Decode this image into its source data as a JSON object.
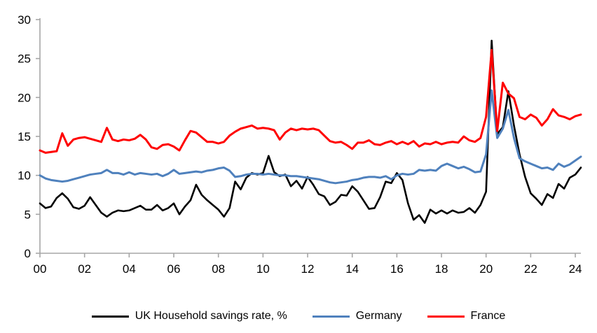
{
  "chart": {
    "axis_color": "#A6A6A6",
    "text_color": "#000000",
    "background": "#FFFFFF"
  },
  "chart_data": {
    "type": "line",
    "title": "",
    "xlabel": "",
    "ylabel": "",
    "ylim": [
      0,
      30
    ],
    "y_ticks": [
      0,
      5,
      10,
      15,
      20,
      25,
      30
    ],
    "grid": false,
    "legend_position": "bottom",
    "x_tick_labels": [
      "00",
      "02",
      "04",
      "06",
      "08",
      "10",
      "12",
      "14",
      "16",
      "18",
      "20",
      "22",
      "24"
    ],
    "x_tick_every": 8,
    "x": [
      "2000Q1",
      "2000Q2",
      "2000Q3",
      "2000Q4",
      "2001Q1",
      "2001Q2",
      "2001Q3",
      "2001Q4",
      "2002Q1",
      "2002Q2",
      "2002Q3",
      "2002Q4",
      "2003Q1",
      "2003Q2",
      "2003Q3",
      "2003Q4",
      "2004Q1",
      "2004Q2",
      "2004Q3",
      "2004Q4",
      "2005Q1",
      "2005Q2",
      "2005Q3",
      "2005Q4",
      "2006Q1",
      "2006Q2",
      "2006Q3",
      "2006Q4",
      "2007Q1",
      "2007Q2",
      "2007Q3",
      "2007Q4",
      "2008Q1",
      "2008Q2",
      "2008Q3",
      "2008Q4",
      "2009Q1",
      "2009Q2",
      "2009Q3",
      "2009Q4",
      "2010Q1",
      "2010Q2",
      "2010Q3",
      "2010Q4",
      "2011Q1",
      "2011Q2",
      "2011Q3",
      "2011Q4",
      "2012Q1",
      "2012Q2",
      "2012Q3",
      "2012Q4",
      "2013Q1",
      "2013Q2",
      "2013Q3",
      "2013Q4",
      "2014Q1",
      "2014Q2",
      "2014Q3",
      "2014Q4",
      "2015Q1",
      "2015Q2",
      "2015Q3",
      "2015Q4",
      "2016Q1",
      "2016Q2",
      "2016Q3",
      "2016Q4",
      "2017Q1",
      "2017Q2",
      "2017Q3",
      "2017Q4",
      "2018Q1",
      "2018Q2",
      "2018Q3",
      "2018Q4",
      "2019Q1",
      "2019Q2",
      "2019Q3",
      "2019Q4",
      "2020Q1",
      "2020Q2",
      "2020Q3",
      "2020Q4",
      "2021Q1",
      "2021Q2",
      "2021Q3",
      "2021Q4",
      "2022Q1",
      "2022Q2",
      "2022Q3",
      "2022Q4",
      "2023Q1",
      "2023Q2",
      "2023Q3",
      "2023Q4",
      "2024Q1",
      "2024Q2"
    ],
    "series": [
      {
        "name": "UK Household savings rate, %",
        "color": "#000000",
        "stroke_width": 2.6,
        "values": [
          6.4,
          5.8,
          6.0,
          7.1,
          7.7,
          7.0,
          5.9,
          5.7,
          6.1,
          7.2,
          6.2,
          5.2,
          4.7,
          5.2,
          5.5,
          5.4,
          5.5,
          5.8,
          6.1,
          5.6,
          5.6,
          6.2,
          5.5,
          5.8,
          6.4,
          5.0,
          6.0,
          6.8,
          8.8,
          7.5,
          6.8,
          6.2,
          5.6,
          4.7,
          5.8,
          9.2,
          8.2,
          9.7,
          10.3,
          10.1,
          10.3,
          12.5,
          10.4,
          9.9,
          10.1,
          8.6,
          9.3,
          8.3,
          9.8,
          8.8,
          7.6,
          7.3,
          6.2,
          6.6,
          7.5,
          7.4,
          8.6,
          7.9,
          6.8,
          5.7,
          5.8,
          7.2,
          9.2,
          9.0,
          10.3,
          9.4,
          6.4,
          4.3,
          4.9,
          3.9,
          5.6,
          5.1,
          5.5,
          5.1,
          5.5,
          5.2,
          5.3,
          5.8,
          5.2,
          6.2,
          7.9,
          27.3,
          15.3,
          16.2,
          20.8,
          16.4,
          12.7,
          9.8,
          7.7,
          7.0,
          6.2,
          7.6,
          7.1,
          8.9,
          8.3,
          9.7,
          10.1,
          11.0
        ]
      },
      {
        "name": "Germany",
        "color": "#4F81BD",
        "stroke_width": 3.0,
        "values": [
          10.0,
          9.6,
          9.4,
          9.3,
          9.2,
          9.3,
          9.5,
          9.7,
          9.9,
          10.1,
          10.2,
          10.3,
          10.7,
          10.3,
          10.3,
          10.1,
          10.4,
          10.1,
          10.3,
          10.2,
          10.1,
          10.2,
          9.9,
          10.2,
          10.7,
          10.2,
          10.3,
          10.4,
          10.5,
          10.4,
          10.6,
          10.7,
          10.9,
          11.0,
          10.6,
          9.8,
          9.9,
          10.1,
          10.2,
          10.2,
          10.1,
          10.2,
          10.1,
          10.0,
          10.0,
          9.9,
          9.9,
          9.8,
          9.7,
          9.6,
          9.5,
          9.3,
          9.1,
          9.0,
          9.1,
          9.2,
          9.4,
          9.5,
          9.7,
          9.8,
          9.8,
          9.7,
          9.9,
          9.5,
          10.0,
          10.2,
          10.1,
          10.2,
          10.7,
          10.6,
          10.7,
          10.6,
          11.2,
          11.5,
          11.2,
          10.9,
          11.1,
          10.8,
          10.4,
          10.5,
          12.7,
          20.9,
          14.8,
          16.0,
          18.4,
          14.8,
          12.2,
          11.8,
          11.5,
          11.2,
          10.9,
          11.0,
          10.7,
          11.5,
          11.1,
          11.4,
          11.9,
          12.4
        ]
      },
      {
        "name": "France",
        "color": "#FF0000",
        "stroke_width": 3.0,
        "values": [
          13.2,
          12.9,
          13.0,
          13.1,
          15.4,
          13.8,
          14.6,
          14.8,
          14.9,
          14.7,
          14.5,
          14.3,
          16.1,
          14.6,
          14.4,
          14.6,
          14.5,
          14.7,
          15.2,
          14.6,
          13.6,
          13.4,
          13.9,
          14.0,
          13.7,
          13.2,
          14.5,
          15.7,
          15.5,
          14.9,
          14.3,
          14.3,
          14.1,
          14.3,
          15.1,
          15.6,
          16.0,
          16.2,
          16.4,
          16.0,
          16.1,
          16.0,
          15.8,
          14.6,
          15.5,
          16.0,
          15.8,
          16.0,
          15.9,
          16.0,
          15.8,
          15.1,
          14.4,
          14.2,
          14.3,
          13.9,
          13.4,
          14.2,
          14.2,
          14.5,
          14.0,
          13.9,
          14.2,
          14.4,
          14.0,
          14.3,
          14.0,
          14.4,
          13.7,
          14.1,
          14.0,
          14.3,
          14.0,
          14.2,
          14.3,
          14.2,
          15.0,
          14.5,
          14.3,
          14.8,
          17.5,
          26.1,
          15.7,
          21.9,
          20.5,
          19.9,
          17.5,
          17.2,
          17.8,
          17.4,
          16.4,
          17.2,
          18.5,
          17.7,
          17.5,
          17.2,
          17.6,
          17.8
        ]
      }
    ]
  }
}
